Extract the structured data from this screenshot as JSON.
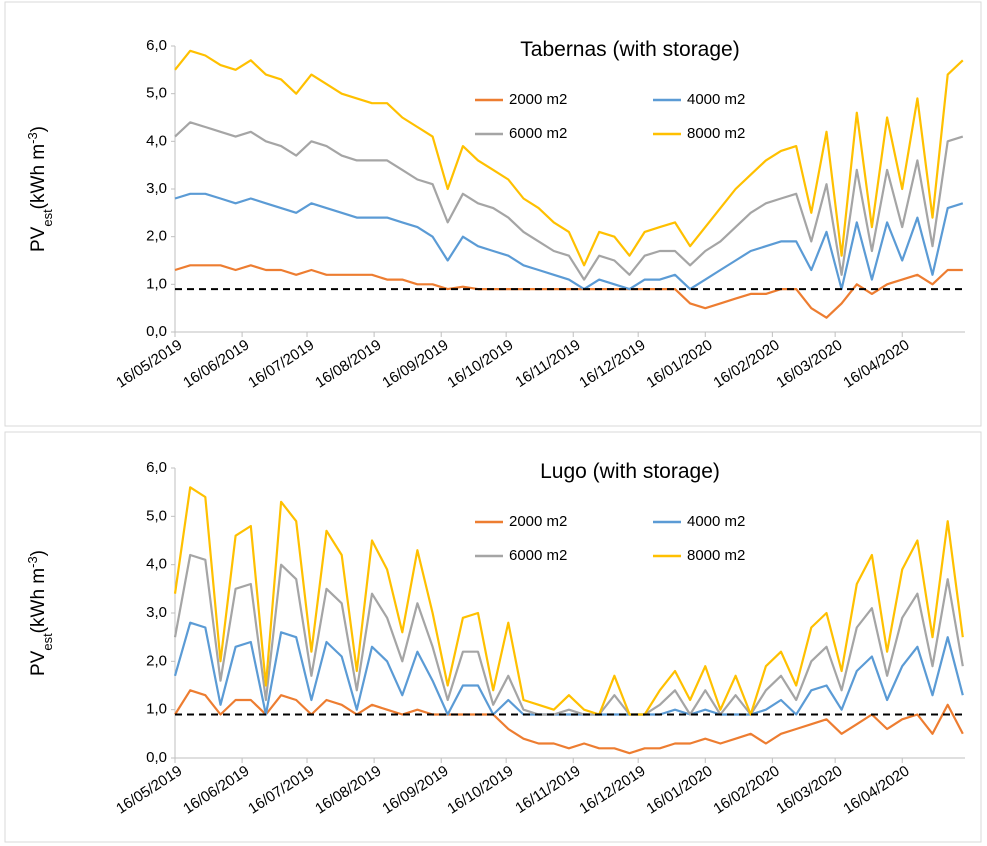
{
  "chart_data": [
    {
      "type": "line",
      "title": "Tabernas (with storage)",
      "ylabel_parts": [
        "PV",
        "est",
        "(kWh m",
        "-3",
        ")"
      ],
      "x": [
        "16/05/2019",
        "23/05/2019",
        "30/05/2019",
        "06/06/2019",
        "13/06/2019",
        "20/06/2019",
        "27/06/2019",
        "04/07/2019",
        "11/07/2019",
        "18/07/2019",
        "25/07/2019",
        "01/08/2019",
        "08/08/2019",
        "15/08/2019",
        "22/08/2019",
        "29/08/2019",
        "05/09/2019",
        "12/09/2019",
        "19/09/2019",
        "26/09/2019",
        "03/10/2019",
        "10/10/2019",
        "17/10/2019",
        "24/10/2019",
        "31/10/2019",
        "07/11/2019",
        "14/11/2019",
        "21/11/2019",
        "28/11/2019",
        "05/12/2019",
        "12/12/2019",
        "19/12/2019",
        "26/12/2019",
        "02/01/2020",
        "09/01/2020",
        "16/01/2020",
        "23/01/2020",
        "30/01/2020",
        "06/02/2020",
        "13/02/2020",
        "20/02/2020",
        "27/02/2020",
        "05/03/2020",
        "12/03/2020",
        "19/03/2020",
        "26/03/2020",
        "02/04/2020",
        "09/04/2020",
        "16/04/2020",
        "23/04/2020",
        "30/04/2020",
        "07/05/2020",
        "14/05/2020"
      ],
      "series": [
        {
          "name": "2000 m2",
          "color": "#ed7d31",
          "values": [
            1.3,
            1.4,
            1.4,
            1.4,
            1.3,
            1.4,
            1.3,
            1.3,
            1.2,
            1.3,
            1.2,
            1.2,
            1.2,
            1.2,
            1.1,
            1.1,
            1.0,
            1.0,
            0.9,
            0.95,
            0.9,
            0.9,
            0.9,
            0.9,
            0.9,
            0.9,
            0.9,
            0.9,
            0.9,
            0.9,
            0.9,
            0.9,
            0.9,
            0.9,
            0.6,
            0.5,
            0.6,
            0.7,
            0.8,
            0.8,
            0.9,
            0.9,
            0.5,
            0.3,
            0.6,
            1.0,
            0.8,
            1.0,
            1.1,
            1.2,
            1.0,
            1.3,
            1.3
          ]
        },
        {
          "name": "4000 m2",
          "color": "#5b9bd5",
          "values": [
            2.8,
            2.9,
            2.9,
            2.8,
            2.7,
            2.8,
            2.7,
            2.6,
            2.5,
            2.7,
            2.6,
            2.5,
            2.4,
            2.4,
            2.4,
            2.3,
            2.2,
            2.0,
            1.5,
            2.0,
            1.8,
            1.7,
            1.6,
            1.4,
            1.3,
            1.2,
            1.1,
            0.9,
            1.1,
            1.0,
            0.9,
            1.1,
            1.1,
            1.2,
            0.9,
            1.1,
            1.3,
            1.5,
            1.7,
            1.8,
            1.9,
            1.9,
            1.3,
            2.1,
            0.9,
            2.3,
            1.1,
            2.3,
            1.5,
            2.4,
            1.2,
            2.6,
            2.7
          ]
        },
        {
          "name": "6000 m2",
          "color": "#a5a5a5",
          "values": [
            4.1,
            4.4,
            4.3,
            4.2,
            4.1,
            4.2,
            4.0,
            3.9,
            3.7,
            4.0,
            3.9,
            3.7,
            3.6,
            3.6,
            3.6,
            3.4,
            3.2,
            3.1,
            2.3,
            2.9,
            2.7,
            2.6,
            2.4,
            2.1,
            1.9,
            1.7,
            1.6,
            1.1,
            1.6,
            1.5,
            1.2,
            1.6,
            1.7,
            1.7,
            1.4,
            1.7,
            1.9,
            2.2,
            2.5,
            2.7,
            2.8,
            2.9,
            1.9,
            3.1,
            1.2,
            3.4,
            1.7,
            3.4,
            2.2,
            3.6,
            1.8,
            4.0,
            4.1
          ]
        },
        {
          "name": "8000 m2",
          "color": "#ffc000",
          "values": [
            5.5,
            5.9,
            5.8,
            5.6,
            5.5,
            5.7,
            5.4,
            5.3,
            5.0,
            5.4,
            5.2,
            5.0,
            4.9,
            4.8,
            4.8,
            4.5,
            4.3,
            4.1,
            3.0,
            3.9,
            3.6,
            3.4,
            3.2,
            2.8,
            2.6,
            2.3,
            2.1,
            1.4,
            2.1,
            2.0,
            1.6,
            2.1,
            2.2,
            2.3,
            1.8,
            2.2,
            2.6,
            3.0,
            3.3,
            3.6,
            3.8,
            3.9,
            2.5,
            4.2,
            1.6,
            4.6,
            2.2,
            4.5,
            3.0,
            4.9,
            2.4,
            5.4,
            5.7
          ]
        }
      ],
      "threshold": 0.9,
      "xlim": [
        "16/05/2019",
        "15/05/2020"
      ],
      "xticks": [
        "16/05/2019",
        "16/06/2019",
        "16/07/2019",
        "16/08/2019",
        "16/09/2019",
        "16/10/2019",
        "16/11/2019",
        "16/12/2019",
        "16/01/2020",
        "16/02/2020",
        "16/03/2020",
        "16/04/2020"
      ],
      "ylim": [
        0,
        6
      ],
      "yticks": [
        {
          "value": 0,
          "label": "0,0"
        },
        {
          "value": 1,
          "label": "1,0"
        },
        {
          "value": 2,
          "label": "2,0"
        },
        {
          "value": 3,
          "label": "3,0"
        },
        {
          "value": 4,
          "label": "4,0"
        },
        {
          "value": 5,
          "label": "5,0"
        },
        {
          "value": 6,
          "label": "6,0"
        }
      ],
      "legend": "upper right",
      "grid": false
    },
    {
      "type": "line",
      "title": "Lugo (with storage)",
      "ylabel_parts": [
        "PV",
        "est",
        "(kWh m",
        "-3",
        ")"
      ],
      "x": [
        "16/05/2019",
        "23/05/2019",
        "30/05/2019",
        "06/06/2019",
        "13/06/2019",
        "20/06/2019",
        "27/06/2019",
        "04/07/2019",
        "11/07/2019",
        "18/07/2019",
        "25/07/2019",
        "01/08/2019",
        "08/08/2019",
        "15/08/2019",
        "22/08/2019",
        "29/08/2019",
        "05/09/2019",
        "12/09/2019",
        "19/09/2019",
        "26/09/2019",
        "03/10/2019",
        "10/10/2019",
        "17/10/2019",
        "24/10/2019",
        "31/10/2019",
        "07/11/2019",
        "14/11/2019",
        "21/11/2019",
        "28/11/2019",
        "05/12/2019",
        "12/12/2019",
        "19/12/2019",
        "26/12/2019",
        "02/01/2020",
        "09/01/2020",
        "16/01/2020",
        "23/01/2020",
        "30/01/2020",
        "06/02/2020",
        "13/02/2020",
        "20/02/2020",
        "27/02/2020",
        "05/03/2020",
        "12/03/2020",
        "19/03/2020",
        "26/03/2020",
        "02/04/2020",
        "09/04/2020",
        "16/04/2020",
        "23/04/2020",
        "30/04/2020",
        "07/05/2020",
        "14/05/2020"
      ],
      "series": [
        {
          "name": "2000 m2",
          "color": "#ed7d31",
          "values": [
            0.9,
            1.4,
            1.3,
            0.9,
            1.2,
            1.2,
            0.9,
            1.3,
            1.2,
            0.9,
            1.2,
            1.1,
            0.9,
            1.1,
            1.0,
            0.9,
            1.0,
            0.9,
            0.9,
            0.9,
            0.9,
            0.9,
            0.6,
            0.4,
            0.3,
            0.3,
            0.2,
            0.3,
            0.2,
            0.2,
            0.1,
            0.2,
            0.2,
            0.3,
            0.3,
            0.4,
            0.3,
            0.4,
            0.5,
            0.3,
            0.5,
            0.6,
            0.7,
            0.8,
            0.5,
            0.7,
            0.9,
            0.6,
            0.8,
            0.9,
            0.5,
            1.1,
            0.5
          ]
        },
        {
          "name": "4000 m2",
          "color": "#5b9bd5",
          "values": [
            1.7,
            2.8,
            2.7,
            1.1,
            2.3,
            2.4,
            0.9,
            2.6,
            2.5,
            1.2,
            2.4,
            2.1,
            1.0,
            2.3,
            2.0,
            1.3,
            2.2,
            1.6,
            0.9,
            1.5,
            1.5,
            0.9,
            1.2,
            0.9,
            0.9,
            0.9,
            0.9,
            0.9,
            0.9,
            0.9,
            0.9,
            0.9,
            0.9,
            1.0,
            0.9,
            1.0,
            0.9,
            0.9,
            0.9,
            1.0,
            1.2,
            0.9,
            1.4,
            1.5,
            1.0,
            1.8,
            2.1,
            1.2,
            1.9,
            2.3,
            1.3,
            2.5,
            1.3
          ]
        },
        {
          "name": "6000 m2",
          "color": "#a5a5a5",
          "values": [
            2.5,
            4.2,
            4.1,
            1.6,
            3.5,
            3.6,
            1.2,
            4.0,
            3.7,
            1.7,
            3.5,
            3.2,
            1.4,
            3.4,
            2.9,
            2.0,
            3.2,
            2.3,
            1.2,
            2.2,
            2.2,
            1.1,
            1.7,
            1.0,
            0.9,
            0.9,
            1.0,
            0.9,
            0.9,
            1.3,
            0.9,
            0.9,
            1.1,
            1.4,
            0.9,
            1.4,
            0.9,
            1.3,
            0.9,
            1.4,
            1.7,
            1.2,
            2.0,
            2.3,
            1.4,
            2.7,
            3.1,
            1.7,
            2.9,
            3.4,
            1.9,
            3.7,
            1.9
          ]
        },
        {
          "name": "8000 m2",
          "color": "#ffc000",
          "values": [
            3.4,
            5.6,
            5.4,
            2.0,
            4.6,
            4.8,
            1.5,
            5.3,
            4.9,
            2.2,
            4.7,
            4.2,
            1.8,
            4.5,
            3.9,
            2.6,
            4.3,
            3.0,
            1.5,
            2.9,
            3.0,
            1.4,
            2.8,
            1.2,
            1.1,
            1.0,
            1.3,
            1.0,
            0.9,
            1.7,
            0.9,
            0.9,
            1.4,
            1.8,
            1.2,
            1.9,
            1.0,
            1.7,
            0.9,
            1.9,
            2.2,
            1.5,
            2.7,
            3.0,
            1.8,
            3.6,
            4.2,
            2.2,
            3.9,
            4.5,
            2.5,
            4.9,
            2.5
          ]
        }
      ],
      "threshold": 0.9,
      "xlim": [
        "16/05/2019",
        "15/05/2020"
      ],
      "xticks": [
        "16/05/2019",
        "16/06/2019",
        "16/07/2019",
        "16/08/2019",
        "16/09/2019",
        "16/10/2019",
        "16/11/2019",
        "16/12/2019",
        "16/01/2020",
        "16/02/2020",
        "16/03/2020",
        "16/04/2020"
      ],
      "ylim": [
        0,
        6
      ],
      "yticks": [
        {
          "value": 0,
          "label": "0,0"
        },
        {
          "value": 1,
          "label": "1,0"
        },
        {
          "value": 2,
          "label": "2,0"
        },
        {
          "value": 3,
          "label": "3,0"
        },
        {
          "value": 4,
          "label": "4,0"
        },
        {
          "value": 5,
          "label": "5,0"
        },
        {
          "value": 6,
          "label": "6,0"
        }
      ],
      "legend": "upper right",
      "grid": false
    }
  ]
}
